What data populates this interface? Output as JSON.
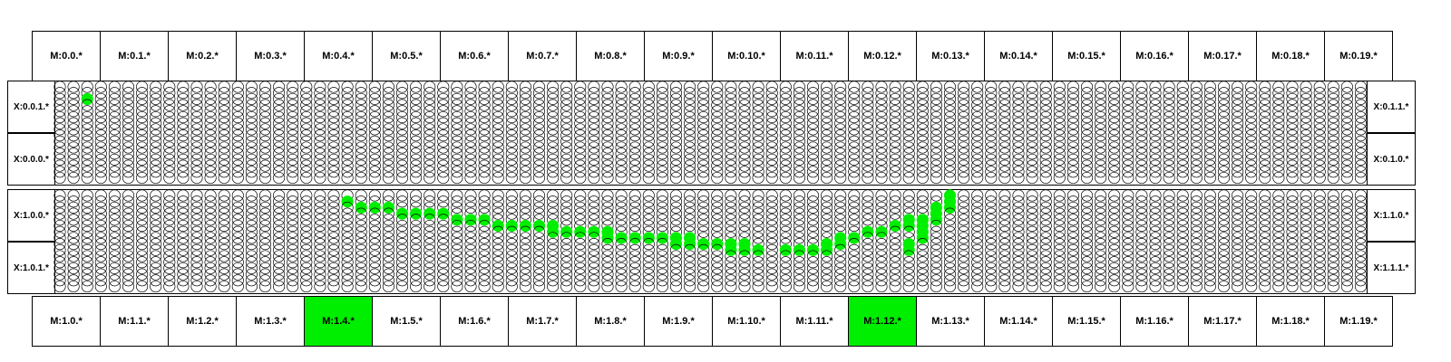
{
  "top_modules": [
    "M:0.0.*",
    "M:0.1.*",
    "M:0.2.*",
    "M:0.3.*",
    "M:0.4.*",
    "M:0.5.*",
    "M:0.6.*",
    "M:0.7.*",
    "M:0.8.*",
    "M:0.9.*",
    "M:0.10.*",
    "M:0.11.*",
    "M:0.12.*",
    "M:0.13.*",
    "M:0.14.*",
    "M:0.15.*",
    "M:0.16.*",
    "M:0.17.*",
    "M:0.18.*",
    "M:0.19.*"
  ],
  "bottom_modules": [
    "M:1.0.*",
    "M:1.1.*",
    "M:1.2.*",
    "M:1.3.*",
    "M:1.4.*",
    "M:1.5.*",
    "M:1.6.*",
    "M:1.7.*",
    "M:1.8.*",
    "M:1.9.*",
    "M:1.10.*",
    "M:1.11.*",
    "M:1.12.*",
    "M:1.13.*",
    "M:1.14.*",
    "M:1.15.*",
    "M:1.16.*",
    "M:1.17.*",
    "M:1.18.*",
    "M:1.19.*"
  ],
  "highlighted_bottom_modules": [
    "M:1.4.*",
    "M:1.12.*"
  ],
  "x_labels": {
    "left": [
      "X:0.0.1.*",
      "X:0.0.0.*",
      "X:1.0.0.*",
      "X:1.0.1.*"
    ],
    "right": [
      "X:0.1.1.*",
      "X:0.1.0.*",
      "X:1.1.0.*",
      "X:1.1.1.*"
    ]
  },
  "grid": {
    "columns": 96,
    "rows_per_panel": 16,
    "panels": 2
  },
  "colors": {
    "active": "#00ee00",
    "node_outline": "#000000",
    "background": "#ffffff"
  },
  "active_nodes": [
    [
      0,
      2,
      2
    ],
    [
      1,
      1,
      21
    ],
    [
      1,
      2,
      22
    ],
    [
      1,
      2,
      23
    ],
    [
      1,
      2,
      24
    ],
    [
      1,
      3,
      25
    ],
    [
      1,
      3,
      26
    ],
    [
      1,
      3,
      27
    ],
    [
      1,
      3,
      28
    ],
    [
      1,
      4,
      29
    ],
    [
      1,
      4,
      30
    ],
    [
      1,
      4,
      31
    ],
    [
      1,
      5,
      32
    ],
    [
      1,
      5,
      33
    ],
    [
      1,
      5,
      34
    ],
    [
      1,
      5,
      35
    ],
    [
      1,
      5,
      36
    ],
    [
      1,
      6,
      36
    ],
    [
      1,
      6,
      37
    ],
    [
      1,
      6,
      38
    ],
    [
      1,
      6,
      39
    ],
    [
      1,
      6,
      40
    ],
    [
      1,
      7,
      40
    ],
    [
      1,
      7,
      41
    ],
    [
      1,
      7,
      42
    ],
    [
      1,
      7,
      43
    ],
    [
      1,
      7,
      44
    ],
    [
      1,
      7,
      45
    ],
    [
      1,
      7,
      46
    ],
    [
      1,
      8,
      45
    ],
    [
      1,
      8,
      46
    ],
    [
      1,
      8,
      47
    ],
    [
      1,
      8,
      48
    ],
    [
      1,
      8,
      49
    ],
    [
      1,
      8,
      50
    ],
    [
      1,
      9,
      49
    ],
    [
      1,
      9,
      50
    ],
    [
      1,
      9,
      51
    ],
    [
      1,
      9,
      53
    ],
    [
      1,
      9,
      54
    ],
    [
      1,
      9,
      55
    ],
    [
      1,
      9,
      56
    ],
    [
      1,
      8,
      56
    ],
    [
      1,
      8,
      57
    ],
    [
      1,
      7,
      57
    ],
    [
      1,
      7,
      58
    ],
    [
      1,
      6,
      59
    ],
    [
      1,
      6,
      60
    ],
    [
      1,
      5,
      61
    ],
    [
      1,
      5,
      62
    ],
    [
      1,
      5,
      63
    ],
    [
      1,
      4,
      63
    ],
    [
      1,
      4,
      64
    ],
    [
      1,
      3,
      64
    ],
    [
      1,
      2,
      64
    ],
    [
      1,
      2,
      65
    ],
    [
      1,
      1,
      65
    ],
    [
      1,
      0,
      65
    ],
    [
      1,
      4,
      62
    ],
    [
      1,
      6,
      63
    ],
    [
      1,
      7,
      63
    ],
    [
      1,
      8,
      62
    ],
    [
      1,
      9,
      62
    ]
  ]
}
